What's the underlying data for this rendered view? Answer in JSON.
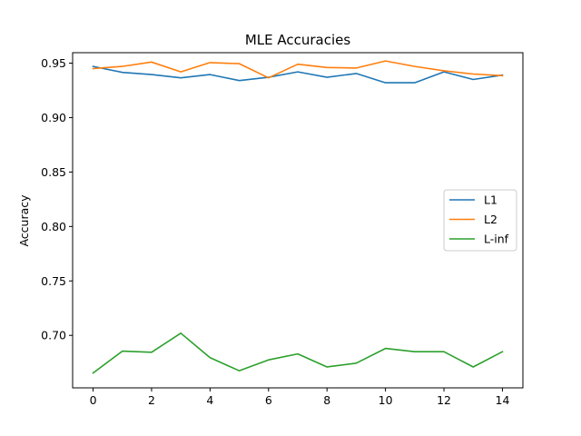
{
  "chart_data": {
    "type": "line",
    "title": "MLE Accuracies",
    "xlabel": "",
    "ylabel": "Accuracy",
    "x": [
      0,
      1,
      2,
      3,
      4,
      5,
      6,
      7,
      8,
      9,
      10,
      11,
      12,
      13,
      14
    ],
    "xlim": [
      -0.7,
      14.7
    ],
    "ylim": [
      0.6518,
      0.9596
    ],
    "xticks": [
      0,
      2,
      4,
      6,
      8,
      10,
      12,
      14
    ],
    "yticks": [
      0.7,
      0.75,
      0.8,
      0.85,
      0.9,
      0.95
    ],
    "ytick_labels": [
      "0.70",
      "0.75",
      "0.80",
      "0.85",
      "0.90",
      "0.95"
    ],
    "grid": false,
    "legend_position": "center-right",
    "series": [
      {
        "name": "L1",
        "color": "#1f77b4",
        "values": [
          0.947,
          0.9415,
          0.9395,
          0.9365,
          0.9395,
          0.934,
          0.937,
          0.942,
          0.937,
          0.9405,
          0.932,
          0.932,
          0.942,
          0.935,
          0.939
        ]
      },
      {
        "name": "L2",
        "color": "#ff7f0e",
        "values": [
          0.945,
          0.947,
          0.951,
          0.942,
          0.9505,
          0.9495,
          0.9365,
          0.949,
          0.946,
          0.9455,
          0.952,
          0.947,
          0.943,
          0.94,
          0.9385
        ]
      },
      {
        "name": "L-inf",
        "color": "#2ca02c",
        "values": [
          0.6655,
          0.6855,
          0.6845,
          0.702,
          0.6795,
          0.6675,
          0.6775,
          0.683,
          0.671,
          0.6745,
          0.688,
          0.685,
          0.685,
          0.671,
          0.685
        ]
      }
    ]
  }
}
